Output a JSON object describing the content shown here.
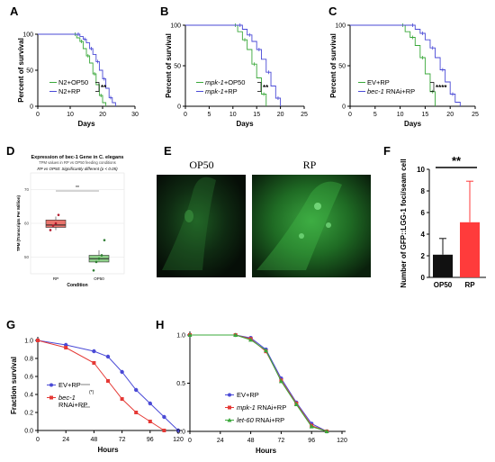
{
  "panel_labels": [
    "A",
    "B",
    "C",
    "D",
    "E",
    "F",
    "G",
    "H"
  ],
  "colors": {
    "green": "#3aa83a",
    "blue": "#4a4ad6",
    "red": "#e53935",
    "ggplot_red": "#e9736b",
    "ggplot_green": "#8fd18a",
    "f_black": "#111111",
    "f_red": "#ff3b3b"
  },
  "chart_data": [
    {
      "id": "A",
      "type": "line",
      "step": true,
      "ylabel": "Percent of survival",
      "xlabel": "Days",
      "xlim": [
        0,
        30
      ],
      "ylim": [
        0,
        100
      ],
      "xticks": [
        0,
        10,
        20,
        30
      ],
      "yticks": [
        0,
        50,
        100
      ],
      "significance": "**",
      "series": [
        {
          "name": "N2+OP50",
          "color": "green",
          "x": [
            0,
            11,
            12,
            13,
            14,
            15,
            16,
            17,
            18,
            19,
            20,
            21
          ],
          "y": [
            100,
            100,
            95,
            90,
            80,
            70,
            60,
            45,
            30,
            15,
            5,
            0
          ]
        },
        {
          "name": "N2+RP",
          "color": "blue",
          "x": [
            0,
            12,
            13,
            14,
            15,
            16,
            17,
            18,
            19,
            20,
            21,
            22,
            23,
            24
          ],
          "y": [
            100,
            100,
            97,
            93,
            88,
            80,
            72,
            62,
            50,
            38,
            25,
            12,
            5,
            0
          ]
        }
      ]
    },
    {
      "id": "B",
      "type": "line",
      "step": true,
      "ylabel": "Percent of survival",
      "xlabel": "Days",
      "xlim": [
        0,
        25
      ],
      "ylim": [
        0,
        100
      ],
      "xticks": [
        0,
        5,
        10,
        15,
        20,
        25
      ],
      "yticks": [
        0,
        50,
        100
      ],
      "significance": "**",
      "series": [
        {
          "name": "mpk-1+OP50",
          "color": "green",
          "italic_prefix": "mpk-1",
          "suffix": "+OP50",
          "x": [
            0,
            10,
            11,
            12,
            13,
            14,
            15,
            16,
            17
          ],
          "y": [
            100,
            100,
            92,
            82,
            70,
            52,
            35,
            15,
            0
          ]
        },
        {
          "name": "mpk-1+RP",
          "color": "blue",
          "italic_prefix": "mpk-1",
          "suffix": "+RP",
          "x": [
            0,
            11,
            12,
            13,
            14,
            15,
            16,
            17,
            18,
            19,
            20
          ],
          "y": [
            100,
            100,
            95,
            88,
            80,
            70,
            58,
            42,
            25,
            10,
            0
          ]
        }
      ]
    },
    {
      "id": "C",
      "type": "line",
      "step": true,
      "ylabel": "Percent of survival",
      "xlabel": "Days",
      "xlim": [
        0,
        25
      ],
      "ylim": [
        0,
        100
      ],
      "xticks": [
        0,
        5,
        10,
        15,
        20,
        25
      ],
      "yticks": [
        0,
        50,
        100
      ],
      "significance": "****",
      "series": [
        {
          "name": "EV+RP",
          "color": "green",
          "x": [
            0,
            10,
            11,
            12,
            13,
            14,
            15,
            16,
            17
          ],
          "y": [
            100,
            100,
            92,
            85,
            75,
            60,
            40,
            18,
            0
          ]
        },
        {
          "name": "bec-1 RNAi+RP",
          "color": "blue",
          "italic_prefix": "bec-1",
          "suffix": " RNAi+RP",
          "x": [
            0,
            12,
            13,
            14,
            15,
            16,
            17,
            18,
            19,
            20,
            21,
            22
          ],
          "y": [
            100,
            100,
            95,
            90,
            82,
            72,
            60,
            45,
            30,
            15,
            5,
            0
          ]
        }
      ]
    },
    {
      "id": "D",
      "type": "boxplot",
      "title": "Expression of bec-1 Gene in C. elegans",
      "subtitle": "TPM values in RP vs OP50 feeding conditions",
      "note": "RP vs OP50: Significantly different (p < 0.05)",
      "significance": "**",
      "xlabel": "Condition",
      "ylabel": "TPM (Transcripts Per Million)",
      "categories": [
        "RP",
        "OP50"
      ],
      "ylim": [
        45,
        75
      ],
      "yticks": [
        50,
        60,
        70
      ],
      "boxes": [
        {
          "category": "RP",
          "min": 58,
          "q1": 58.8,
          "median": 59.5,
          "q3": 61,
          "max": 62,
          "points": [
            58,
            59.3,
            60,
            62.5
          ],
          "color": "ggplot_red"
        },
        {
          "category": "OP50",
          "min": 48.5,
          "q1": 48.5,
          "median": 49.5,
          "q3": 50.5,
          "max": 52,
          "points": [
            46,
            48.5,
            49.5,
            50.5,
            55
          ],
          "color": "ggplot_green"
        }
      ]
    },
    {
      "id": "F",
      "type": "bar",
      "ylabel": "Number of GFP::LGG-1 foci/seam cell",
      "categories": [
        "OP50",
        "RP"
      ],
      "values": [
        2.1,
        5.1
      ],
      "errors": [
        1.5,
        3.8
      ],
      "ylim": [
        0,
        10
      ],
      "yticks": [
        0,
        2,
        4,
        6,
        8,
        10
      ],
      "significance": "**"
    },
    {
      "id": "G",
      "type": "line",
      "xlabel": "Hours",
      "ylabel": "Fraction survival",
      "xlim": [
        0,
        120
      ],
      "ylim": [
        0,
        1.0
      ],
      "xticks": [
        0,
        24,
        48,
        72,
        96,
        120
      ],
      "yticks": [
        0.0,
        0.2,
        0.4,
        0.6,
        0.8,
        1.0
      ],
      "significance": "(*)",
      "series": [
        {
          "name": "EV+RP",
          "color": "blue",
          "x": [
            0,
            24,
            48,
            60,
            72,
            84,
            96,
            108,
            120
          ],
          "y": [
            1.0,
            0.95,
            0.88,
            0.82,
            0.65,
            0.45,
            0.3,
            0.15,
            0.0
          ]
        },
        {
          "name": "bec-1 RNAi+RP",
          "color": "red",
          "x": [
            0,
            24,
            48,
            60,
            72,
            84,
            96,
            108
          ],
          "y": [
            1.0,
            0.92,
            0.75,
            0.55,
            0.35,
            0.2,
            0.1,
            0.0
          ]
        }
      ]
    },
    {
      "id": "H",
      "type": "line",
      "xlabel": "Hours",
      "xlim": [
        0,
        120
      ],
      "ylim": [
        0,
        1.0
      ],
      "xticks": [
        0,
        24,
        48,
        72,
        96,
        120
      ],
      "yticks": [
        0.0,
        0.5,
        1.0
      ],
      "series": [
        {
          "name": "EV+RP",
          "color": "blue",
          "x": [
            0,
            36,
            48,
            60,
            72,
            84,
            96,
            108
          ],
          "y": [
            1.0,
            1.0,
            0.97,
            0.85,
            0.55,
            0.3,
            0.08,
            0.0
          ]
        },
        {
          "name": "mpk-1 RNAi+RP",
          "color": "red",
          "italic_prefix": "mpk-1",
          "suffix": " RNAi+RP",
          "x": [
            0,
            36,
            48,
            60,
            72,
            84,
            96,
            108
          ],
          "y": [
            1.0,
            1.0,
            0.96,
            0.83,
            0.53,
            0.29,
            0.06,
            0.0
          ]
        },
        {
          "name": "let-60 RNAi+RP",
          "color": "green",
          "italic_prefix": "let-60",
          "suffix": " RNAi+RP",
          "x": [
            0,
            36,
            48,
            60,
            72,
            84,
            96,
            108
          ],
          "y": [
            1.0,
            1.0,
            0.95,
            0.84,
            0.52,
            0.28,
            0.05,
            0.0
          ]
        }
      ]
    }
  ],
  "panel_e": {
    "left_label": "OP50",
    "right_label": "RP"
  }
}
